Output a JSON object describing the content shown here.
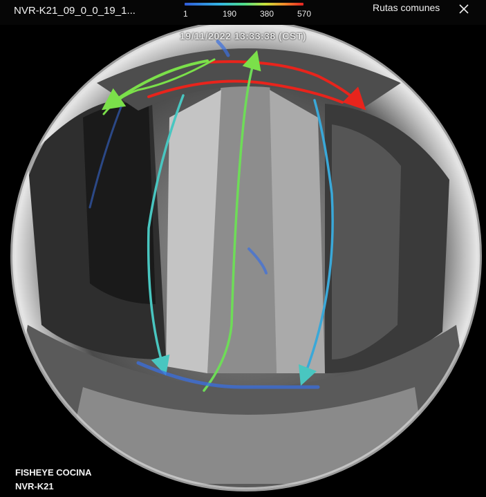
{
  "header": {
    "camera_title": "NVR-K21_09_0_0_19_1...",
    "routes_link": "Rutas comunes",
    "close_icon": "close-icon"
  },
  "legend": {
    "labels": [
      "1",
      "190",
      "380",
      "570"
    ],
    "colors": [
      "#2f5bd8",
      "#34b6e2",
      "#4fdc8a",
      "#c9e03a",
      "#f08a2a",
      "#e52222"
    ]
  },
  "video": {
    "timestamp": "19/11/2022 13:33:38 (CST)",
    "camera_name": "FISHEYE COCINA",
    "nvr_label": "NVR-K21",
    "route_colors": {
      "red": "#e8241c",
      "green": "#7be04a",
      "blue": "#3a8fe0"
    }
  }
}
